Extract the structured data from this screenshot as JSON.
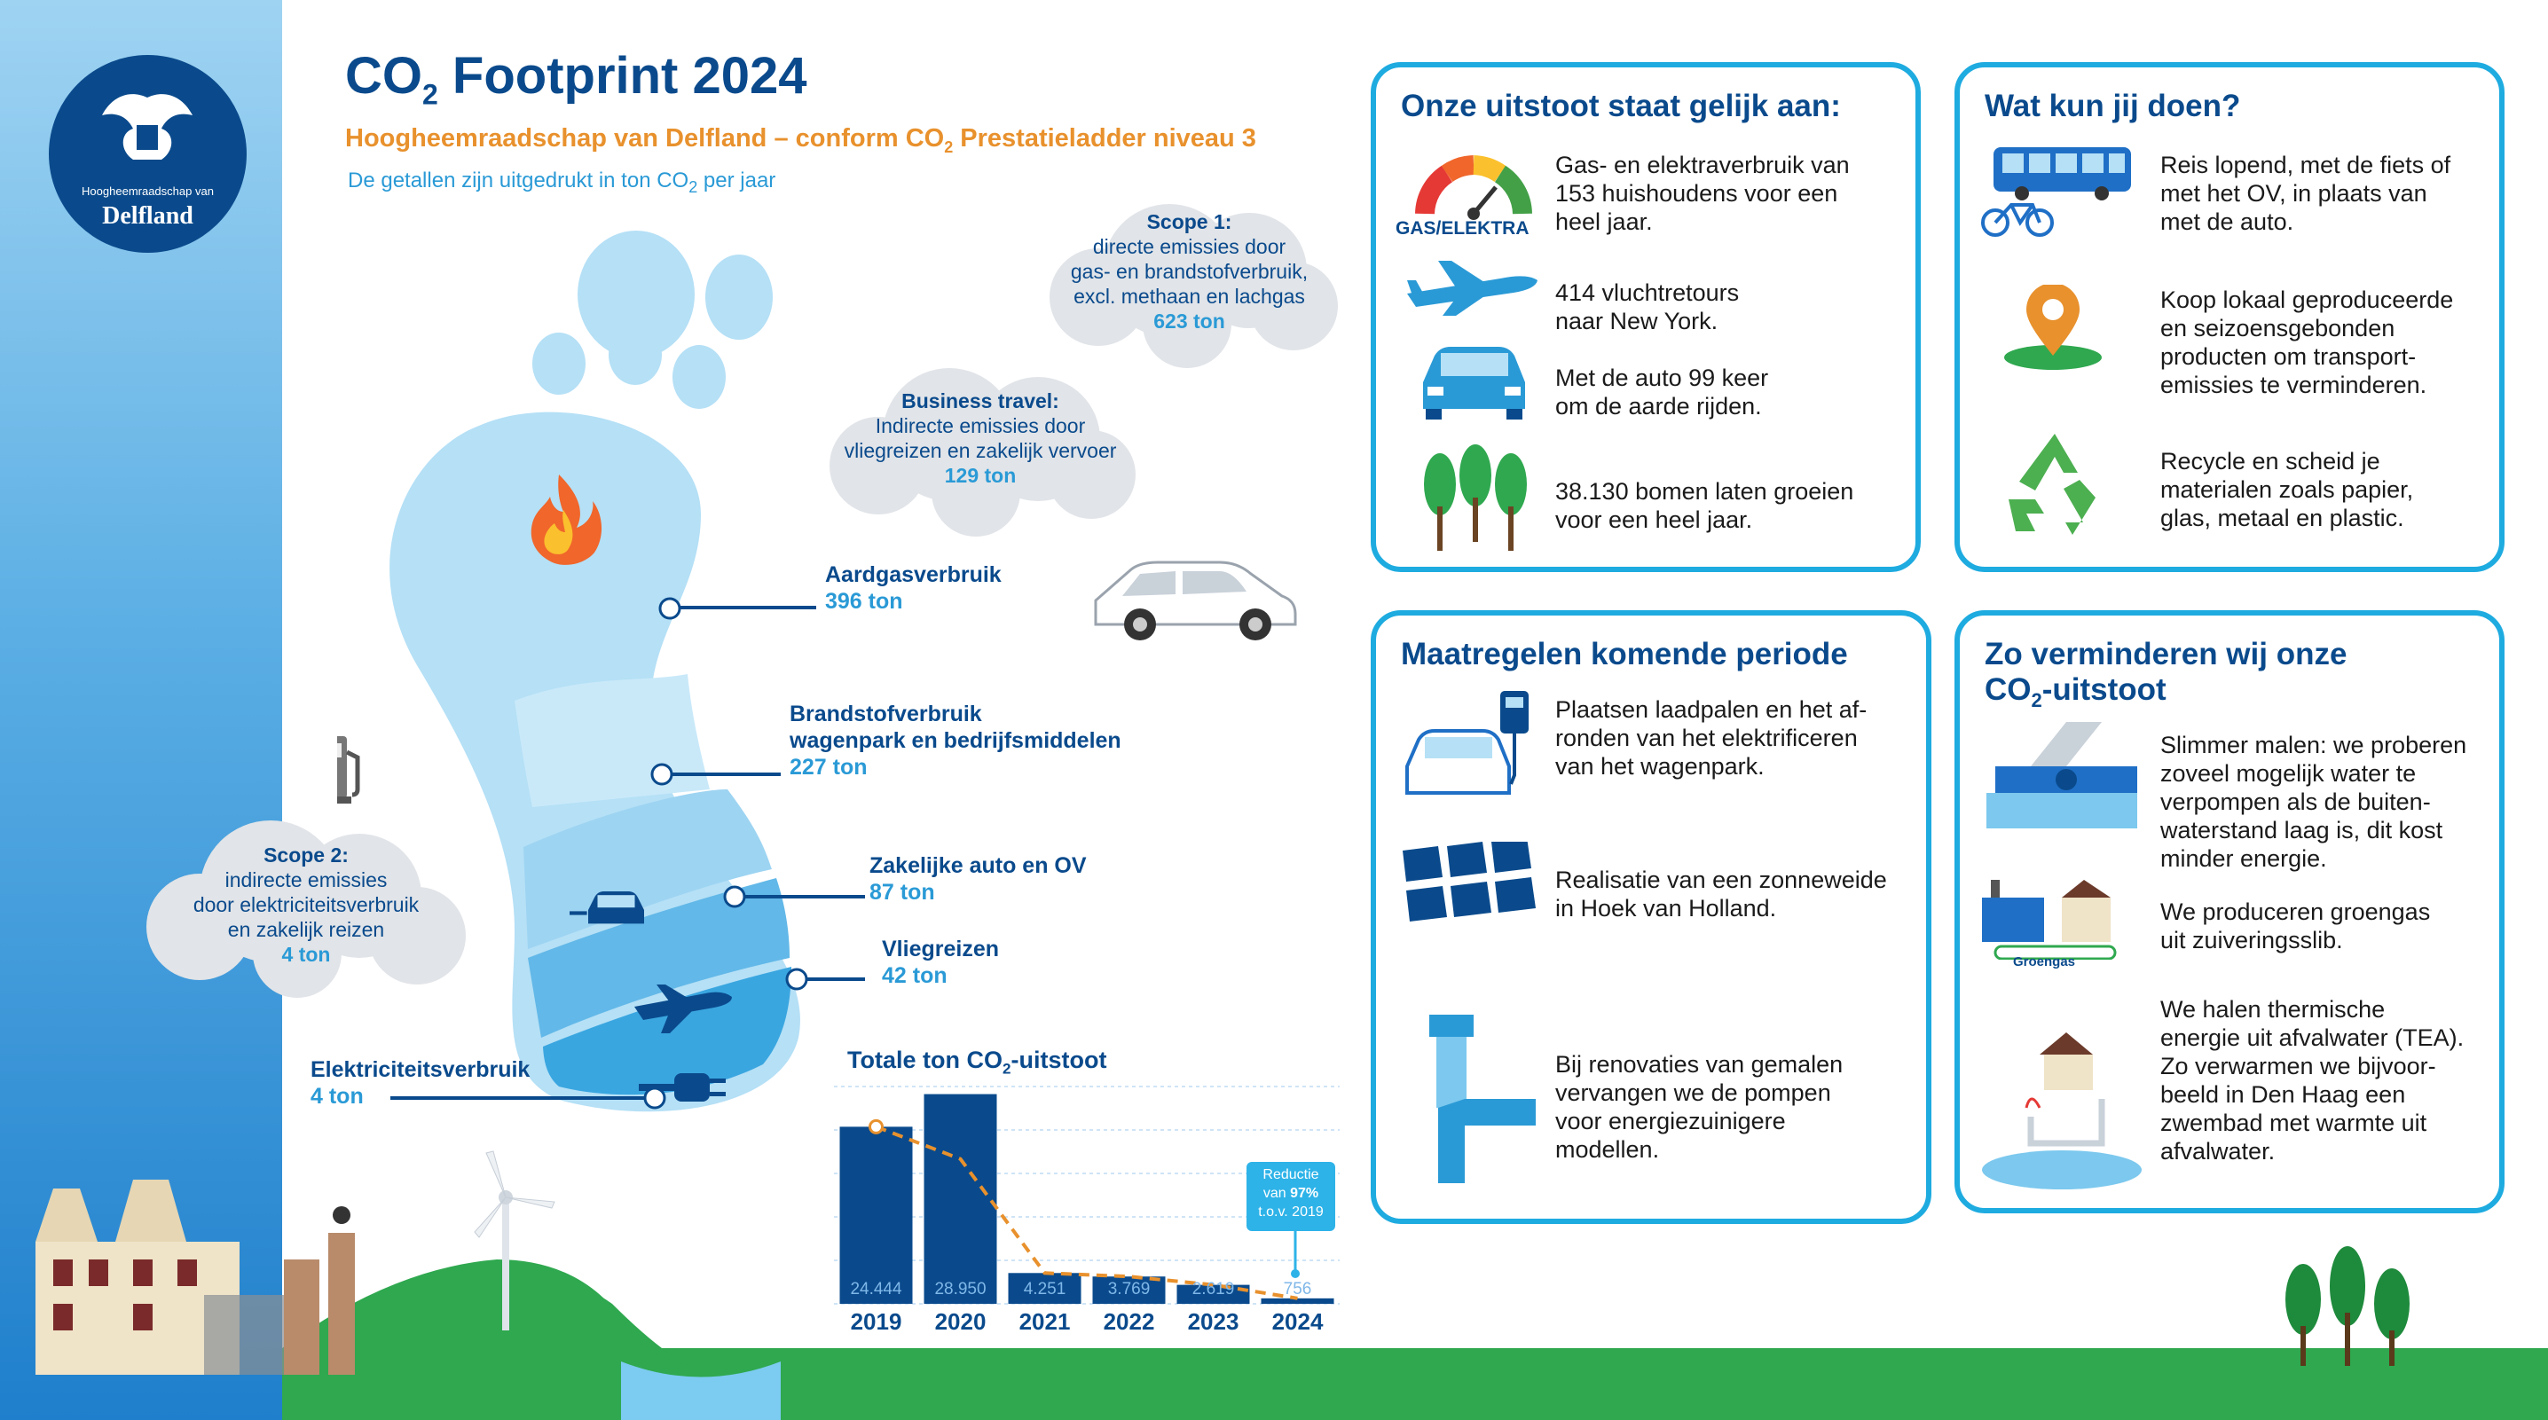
{
  "header": {
    "title_main": "CO",
    "title_sub": "2",
    "title_rest": " Footprint 2024",
    "subtitle_a": "Hoogheemraadschap van Delfland – conform CO",
    "subtitle_sub": "2",
    "subtitle_b": " Prestatieladder niveau 3",
    "note_a": "De getallen zijn uitgedrukt in ton CO",
    "note_sub": "2",
    "note_b": " per jaar"
  },
  "logo": {
    "small": "Hoogheemraadschap van",
    "big": "Delfland"
  },
  "clouds": {
    "scope1": {
      "heading": "Scope 1:",
      "l1": "directe emissies door",
      "l2": "gas- en brandstofverbruik,",
      "l3": "excl. methaan en lachgas",
      "value": "623 ton"
    },
    "business": {
      "heading": "Business travel:",
      "l1": "Indirecte emissies door",
      "l2": "vliegreizen en zakelijk vervoer",
      "value": "129 ton"
    },
    "scope2": {
      "heading": "Scope 2:",
      "l1": "indirecte emissies",
      "l2": "door elektriciteitsverbruik",
      "l3": "en zakelijk reizen",
      "value": "4 ton"
    }
  },
  "foot_labels": {
    "aardgas": {
      "name": "Aardgasverbruik",
      "value": "396 ton"
    },
    "brandstof": {
      "name1": "Brandstofverbruik",
      "name2": "wagenpark en bedrijfsmiddelen",
      "value": "227 ton"
    },
    "auto_ov": {
      "name": "Zakelijke auto en OV",
      "value": "87 ton"
    },
    "vlieg": {
      "name": "Vliegreizen",
      "value": "42 ton"
    },
    "elektra": {
      "name": "Elektriciteitsverbruik",
      "value": "4 ton"
    }
  },
  "chart_data": {
    "type": "bar",
    "title_a": "Totale ton CO",
    "title_sub": "2",
    "title_b": "-uitstoot",
    "categories": [
      "2019",
      "2020",
      "2021",
      "2022",
      "2023",
      "2024"
    ],
    "values": [
      24444,
      28950,
      4251,
      3769,
      2619,
      756
    ],
    "value_labels": [
      "24.444",
      "28.950",
      "4.251",
      "3.769",
      "2.619",
      "756"
    ],
    "ylim": [
      0,
      30000
    ],
    "bar_color": "#0a4a8c",
    "trend_color": "#e8912d",
    "callout": {
      "l1": "Reductie",
      "l2a": "van ",
      "l2b": "97%",
      "l3": "t.o.v. 2019"
    }
  },
  "panels": {
    "equal": {
      "title": "Onze uitstoot staat gelijk aan:",
      "gauge_label": "GAS/ELEKTRA",
      "items": [
        {
          "icon": "gauge-icon",
          "lines": [
            "Gas- en elektraverbruik van",
            "153 huishoudens voor een",
            "heel jaar."
          ]
        },
        {
          "icon": "airplane-icon",
          "lines": [
            "414 vluchtretours",
            "naar New York."
          ]
        },
        {
          "icon": "car-icon",
          "lines": [
            "Met de auto 99 keer",
            "om de aarde rijden."
          ]
        },
        {
          "icon": "trees-icon",
          "lines": [
            "38.130 bomen laten groeien",
            "voor een heel jaar."
          ]
        }
      ]
    },
    "you": {
      "title": "Wat kun jij doen?",
      "items": [
        {
          "icon": "bus-bike-icon",
          "lines": [
            "Reis lopend, met de fiets of",
            "met het OV, in plaats van",
            "met de auto."
          ]
        },
        {
          "icon": "location-pin-icon",
          "lines": [
            "Koop lokaal geproduceerde",
            "en seizoensgebonden",
            "producten om transport-",
            "emissies te verminderen."
          ]
        },
        {
          "icon": "recycle-icon",
          "lines": [
            "Recycle en scheid je",
            "materialen zoals papier,",
            "glas, metaal en plastic."
          ]
        }
      ]
    },
    "measures": {
      "title": "Maatregelen komende periode",
      "items": [
        {
          "icon": "ev-charger-icon",
          "lines": [
            "Plaatsen laadpalen en het af-",
            "ronden van het elektrificeren",
            "van het wagenpark."
          ]
        },
        {
          "icon": "solar-panels-icon",
          "lines": [
            "Realisatie van een zonneweide",
            "in Hoek van Holland."
          ]
        },
        {
          "icon": "pump-icon",
          "lines": [
            "Bij renovaties van gemalen",
            "vervangen we de pompen",
            "voor energiezuinigere",
            "modellen."
          ]
        }
      ]
    },
    "reduce": {
      "title_l1": "Zo verminderen wij onze",
      "title_l2a": "CO",
      "title_l2sub": "2",
      "title_l2b": "-uitstoot",
      "groengas_label": "Groengas",
      "items": [
        {
          "icon": "pumping-station-icon",
          "lines": [
            "Slimmer malen: we proberen",
            "zoveel mogelijk water te",
            "verpompen als de buiten-",
            "waterstand laag is, dit kost",
            "minder energie."
          ]
        },
        {
          "icon": "factory-icon",
          "lines": [
            "We produceren groengas",
            "uit zuiveringsslib."
          ]
        },
        {
          "icon": "heat-house-icon",
          "lines": [
            "We halen thermische",
            "energie uit afvalwater (TEA).",
            "Zo verwarmen we bijvoor-",
            "beeld in Den Haag een",
            "zwembad met warmte uit",
            "afvalwater."
          ]
        }
      ]
    }
  }
}
